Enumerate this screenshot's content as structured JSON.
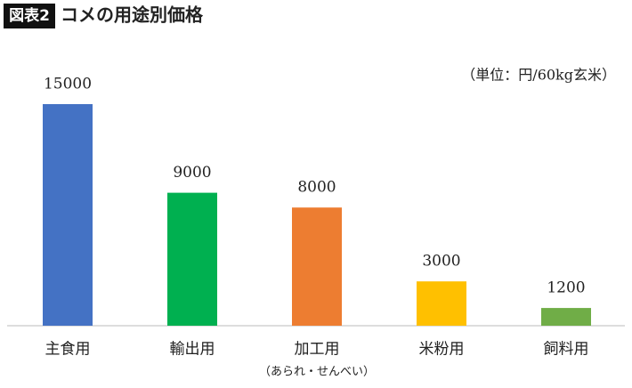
{
  "chart_data": {
    "type": "bar",
    "figure_label": "図表2",
    "title": "コメの用途別価格",
    "unit_note": "（単位：円/60kg玄米）",
    "categories": [
      "主食用",
      "輸出用",
      "加工用",
      "米粉用",
      "飼料用"
    ],
    "values": [
      15000,
      9000,
      8000,
      3000,
      1200
    ],
    "colors": [
      "#4472c4",
      "#00b050",
      "#ed7d31",
      "#ffc000",
      "#70ad47"
    ],
    "annotations": [
      {
        "category": "加工用",
        "text": "（あられ・せんべい）"
      }
    ]
  }
}
